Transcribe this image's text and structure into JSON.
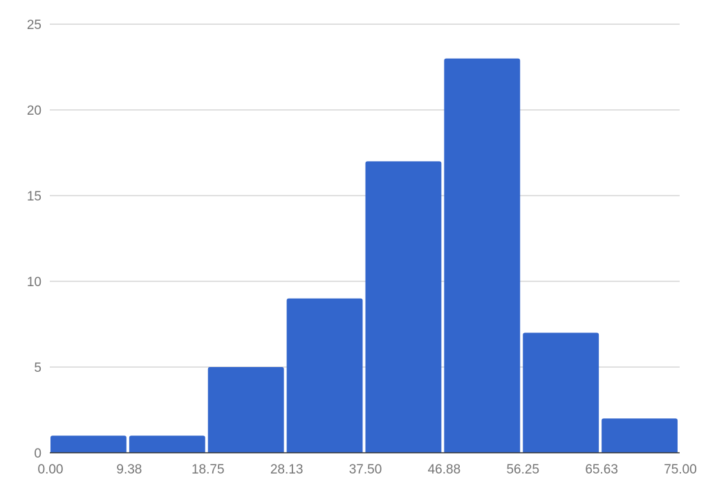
{
  "chart_data": {
    "type": "bar",
    "subtype": "histogram",
    "title": "",
    "xlabel": "",
    "ylabel": "",
    "bin_edges": [
      0,
      9.375,
      18.75,
      28.125,
      37.5,
      46.875,
      56.25,
      65.625,
      75
    ],
    "x_tick_labels": [
      "0.00",
      "9.38",
      "18.75",
      "28.13",
      "37.50",
      "46.88",
      "56.25",
      "65.63",
      "75.00"
    ],
    "values": [
      1,
      1,
      5,
      9,
      17,
      23,
      7,
      2
    ],
    "y_ticks": [
      0,
      5,
      10,
      15,
      20,
      25
    ],
    "y_tick_labels": [
      "0",
      "5",
      "10",
      "15",
      "20",
      "25"
    ],
    "xlim": [
      0,
      75
    ],
    "ylim": [
      0,
      25
    ],
    "grid": true,
    "legend": "none",
    "colors": {
      "bar": "#3366cc",
      "grid": "#cccccc",
      "axis": "#333333",
      "text": "#757575"
    }
  }
}
